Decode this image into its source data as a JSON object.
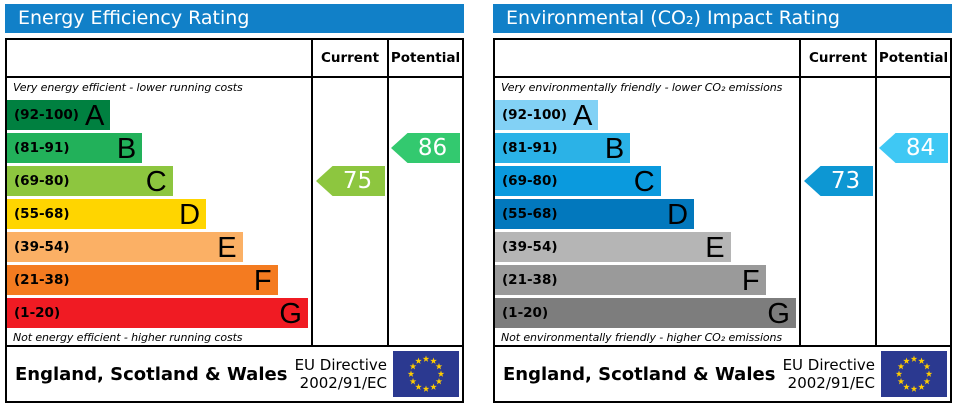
{
  "colors": {
    "title_bar": "#1180c8",
    "flag_blue": "#2b3990",
    "flag_stars": "#ffcc00"
  },
  "panels": [
    {
      "title": "Energy Efficiency Rating",
      "header": {
        "current": "Current",
        "potential": "Potential"
      },
      "top_caption": "Very energy efficient - lower running costs",
      "bottom_caption": "Not energy efficient - higher running costs",
      "bands": [
        {
          "range": "(92-100)",
          "letter": "A",
          "color": "#008040",
          "width_pct": 34
        },
        {
          "range": "(81-91)",
          "letter": "B",
          "color": "#22b15a",
          "width_pct": 44.5
        },
        {
          "range": "(69-80)",
          "letter": "C",
          "color": "#8dc63f",
          "width_pct": 54.5
        },
        {
          "range": "(55-68)",
          "letter": "D",
          "color": "#ffd500",
          "width_pct": 65.5
        },
        {
          "range": "(39-54)",
          "letter": "E",
          "color": "#fbb065",
          "width_pct": 77.5
        },
        {
          "range": "(21-38)",
          "letter": "F",
          "color": "#f47b20",
          "width_pct": 89
        },
        {
          "range": "(1-20)",
          "letter": "G",
          "color": "#f01b23",
          "width_pct": 99
        }
      ],
      "current": {
        "value": "75",
        "color": "#8dc63f",
        "row": 2
      },
      "potential": {
        "value": "86",
        "color": "#33c96f",
        "row": 1
      },
      "footer": {
        "region": "England, Scotland & Wales",
        "directive_line1": "EU Directive",
        "directive_line2": "2002/91/EC"
      }
    },
    {
      "title": "Environmental (CO₂) Impact Rating",
      "header": {
        "current": "Current",
        "potential": "Potential"
      },
      "top_caption": "Very environmentally friendly - lower CO₂ emissions",
      "bottom_caption": "Not environmentally friendly - higher CO₂ emissions",
      "bands": [
        {
          "range": "(92-100)",
          "letter": "A",
          "color": "#82d1f5",
          "width_pct": 34
        },
        {
          "range": "(81-91)",
          "letter": "B",
          "color": "#2bb2e7",
          "width_pct": 44.5
        },
        {
          "range": "(69-80)",
          "letter": "C",
          "color": "#0a9ade",
          "width_pct": 54.5
        },
        {
          "range": "(55-68)",
          "letter": "D",
          "color": "#0278bd",
          "width_pct": 65.5
        },
        {
          "range": "(39-54)",
          "letter": "E",
          "color": "#b5b5b5",
          "width_pct": 77.5
        },
        {
          "range": "(21-38)",
          "letter": "F",
          "color": "#9a9a9a",
          "width_pct": 89
        },
        {
          "range": "(1-20)",
          "letter": "G",
          "color": "#7d7d7d",
          "width_pct": 99
        }
      ],
      "current": {
        "value": "73",
        "color": "#0d97d3",
        "row": 2
      },
      "potential": {
        "value": "84",
        "color": "#3fc8f4",
        "row": 1
      },
      "footer": {
        "region": "England, Scotland & Wales",
        "directive_line1": "EU Directive",
        "directive_line2": "2002/91/EC"
      }
    }
  ],
  "chart_data": [
    {
      "type": "bar",
      "title": "Energy Efficiency Rating",
      "categories": [
        "A (92-100)",
        "B (81-91)",
        "C (69-80)",
        "D (55-68)",
        "E (39-54)",
        "F (21-38)",
        "G (1-20)"
      ],
      "values": [
        34,
        44.5,
        54.5,
        65.5,
        77.5,
        89,
        99
      ],
      "current_rating": 75,
      "current_band": "C",
      "potential_rating": 86,
      "potential_band": "B",
      "top_caption": "Very energy efficient - lower running costs",
      "bottom_caption": "Not energy efficient - higher running costs",
      "region": "England, Scotland & Wales",
      "directive": "EU Directive 2002/91/EC"
    },
    {
      "type": "bar",
      "title": "Environmental (CO₂) Impact Rating",
      "categories": [
        "A (92-100)",
        "B (81-91)",
        "C (69-80)",
        "D (55-68)",
        "E (39-54)",
        "F (21-38)",
        "G (1-20)"
      ],
      "values": [
        34,
        44.5,
        54.5,
        65.5,
        77.5,
        89,
        99
      ],
      "current_rating": 73,
      "current_band": "C",
      "potential_rating": 84,
      "potential_band": "B",
      "top_caption": "Very environmentally friendly - lower CO₂ emissions",
      "bottom_caption": "Not environmentally friendly - higher CO₂ emissions",
      "region": "England, Scotland & Wales",
      "directive": "EU Directive 2002/91/EC"
    }
  ]
}
